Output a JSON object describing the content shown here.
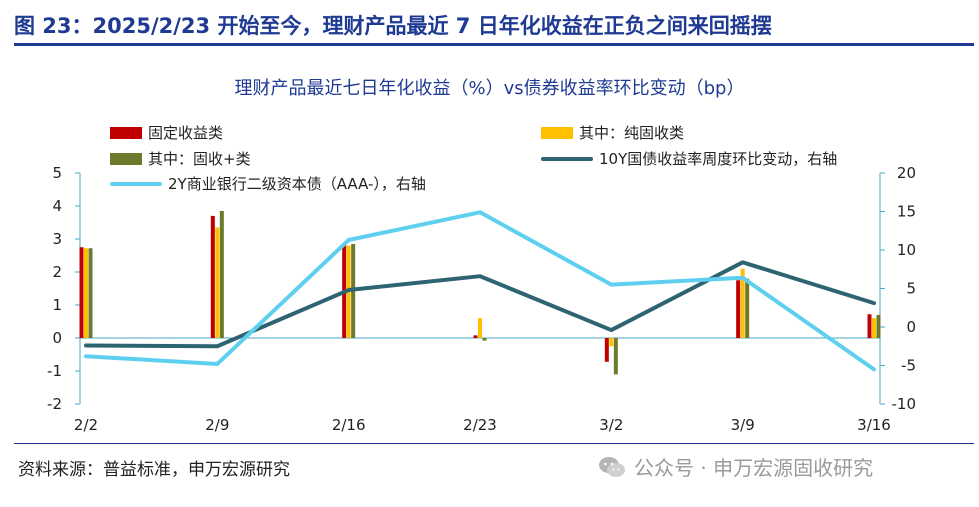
{
  "header": {
    "title": "图 23：2025/2/23 开始至今，理财产品最近 7 日年化收益在正负之间来回摇摆"
  },
  "footer": {
    "source": "资料来源：普益标准，申万宏源研究",
    "watermark": "公众号 · 申万宏源固收研究",
    "watermark_icon": "wechat-icon"
  },
  "colors": {
    "fixed_income": "#c00000",
    "pure_fixed": "#ffc000",
    "fixed_plus": "#6b7b2b",
    "cn10y": "#2e6472",
    "bank2y": "#5fcff0",
    "brand": "#1f3a93"
  },
  "chart_data": {
    "type": "bar",
    "title": "理财产品最近七日年化收益（%）vs债券收益率环比变动（bp）",
    "categories": [
      "2/2",
      "2/9",
      "2/16",
      "2/23",
      "3/2",
      "3/9",
      "3/16"
    ],
    "ylim": [
      -2,
      5
    ],
    "y_ticks": [
      "-2",
      "-1",
      "0",
      "1",
      "2",
      "3",
      "4",
      "5"
    ],
    "y2lim": [
      -10,
      20
    ],
    "y2_ticks": [
      "-10",
      "-5",
      "0",
      "5",
      "10",
      "15",
      "20"
    ],
    "grid": false,
    "series": [
      {
        "name": "固定收益类",
        "type": "bar",
        "axis": "left",
        "values": [
          2.75,
          3.7,
          2.85,
          0.08,
          -0.72,
          1.75,
          0.72
        ]
      },
      {
        "name": "其中：纯固收类",
        "type": "bar",
        "axis": "left",
        "values": [
          2.72,
          3.35,
          2.8,
          0.6,
          -0.25,
          2.1,
          0.6
        ]
      },
      {
        "name": "其中：固收+类",
        "type": "bar",
        "axis": "left",
        "values": [
          2.72,
          3.85,
          2.85,
          -0.08,
          -1.1,
          1.8,
          0.7
        ]
      },
      {
        "name": "10Y国债收益率周度环比变动，右轴",
        "type": "line",
        "axis": "right",
        "values": [
          -2.4,
          -2.5,
          4.8,
          6.6,
          -0.4,
          8.4,
          3.1
        ]
      },
      {
        "name": "2Y商业银行二级资本债（AAA-），右轴",
        "type": "line",
        "axis": "right",
        "values": [
          -3.8,
          -4.8,
          11.3,
          14.9,
          5.5,
          6.4,
          -5.5
        ]
      }
    ]
  }
}
